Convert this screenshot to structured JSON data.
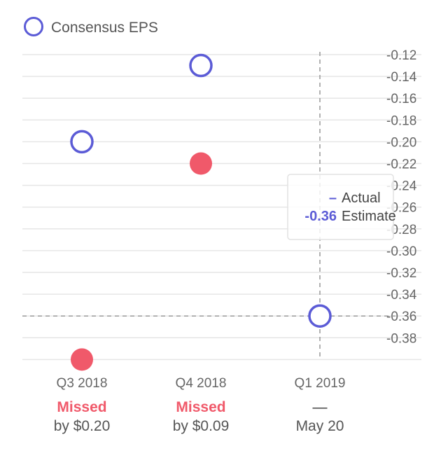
{
  "chart_data": {
    "type": "scatter",
    "legend": {
      "label": "Consensus EPS",
      "position": "top-left"
    },
    "categories": [
      "Q3 2018",
      "Q4 2018",
      "Q1 2019"
    ],
    "series": [
      {
        "name": "Consensus EPS",
        "values": [
          -0.2,
          -0.13,
          -0.36
        ],
        "marker": "hollow-circle",
        "color": "#5b5bd6"
      },
      {
        "name": "Actual",
        "values": [
          -0.4,
          -0.22,
          null
        ],
        "marker": "filled-circle",
        "color": "#f0596a"
      }
    ],
    "y_ticks": [
      "-0.12",
      "-0.14",
      "-0.16",
      "-0.18",
      "-0.20",
      "-0.22",
      "-0.24",
      "-0.26",
      "-0.28",
      "-0.30",
      "-0.32",
      "-0.34",
      "-0.36",
      "-0.38"
    ],
    "ylim": [
      -0.4,
      -0.12
    ],
    "yaxis_position": "right",
    "grid": true,
    "results": [
      {
        "status": "Missed",
        "detail": "by $0.20"
      },
      {
        "status": "Missed",
        "detail": "by $0.09"
      },
      {
        "status": "—",
        "detail": "May 20"
      }
    ],
    "crosshair": {
      "category_index": 2,
      "value": -0.36
    },
    "tooltip": {
      "rows": [
        {
          "value": "–",
          "label": "Actual"
        },
        {
          "value": "-0.36",
          "label": "Estimate"
        }
      ]
    },
    "colors": {
      "estimate": "#5b5bd6",
      "missed": "#f0596a",
      "grid": "#e6e6e6",
      "text": "#666666",
      "crosshair": "#999999"
    }
  }
}
